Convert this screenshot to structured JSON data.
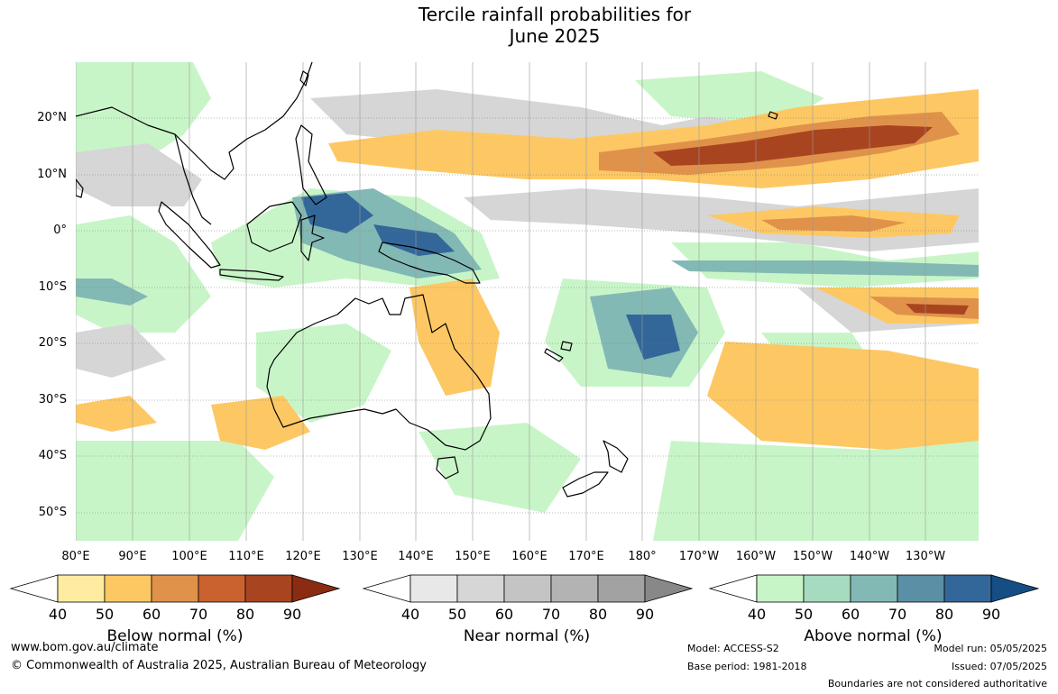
{
  "title_line1": "Tercile rainfall probabilities for",
  "title_line2": "June 2025",
  "lat_labels": [
    "20°N",
    "10°N",
    "0°",
    "10°S",
    "20°S",
    "30°S",
    "40°S",
    "50°S"
  ],
  "lon_labels": [
    "80°E",
    "90°E",
    "100°E",
    "110°E",
    "120°E",
    "130°E",
    "140°E",
    "150°E",
    "160°E",
    "170°E",
    "180°",
    "170°W",
    "160°W",
    "150°W",
    "140°W",
    "130°W"
  ],
  "colorbars": [
    {
      "title": "Below normal (%)",
      "ticks": [
        "40",
        "50",
        "60",
        "70",
        "80",
        "90"
      ],
      "colors": [
        "#ffeca0",
        "#fdc863",
        "#e0924a",
        "#c9622e",
        "#a84520",
        "#8a2c12"
      ]
    },
    {
      "title": "Near normal (%)",
      "ticks": [
        "40",
        "50",
        "60",
        "70",
        "80",
        "90"
      ],
      "colors": [
        "#e8e8e8",
        "#d6d6d6",
        "#c4c4c4",
        "#b3b3b3",
        "#a2a2a2",
        "#888888"
      ]
    },
    {
      "title": "Above normal (%)",
      "ticks": [
        "40",
        "50",
        "60",
        "70",
        "80",
        "90"
      ],
      "colors": [
        "#c8f5c8",
        "#a6dbbf",
        "#82b9b4",
        "#5a8fa6",
        "#336799",
        "#144e85"
      ]
    }
  ],
  "footer": {
    "website": "www.bom.gov.au/climate",
    "copyright": "© Commonwealth of Australia 2025, Australian Bureau of Meteorology",
    "model": "Model: ACCESS-S2",
    "base_period": "Base period: 1981-2018",
    "model_run": "Model run: 05/05/2025",
    "issued": "Issued: 07/05/2025",
    "disclaimer": "Boundaries are not considered authoritative"
  }
}
